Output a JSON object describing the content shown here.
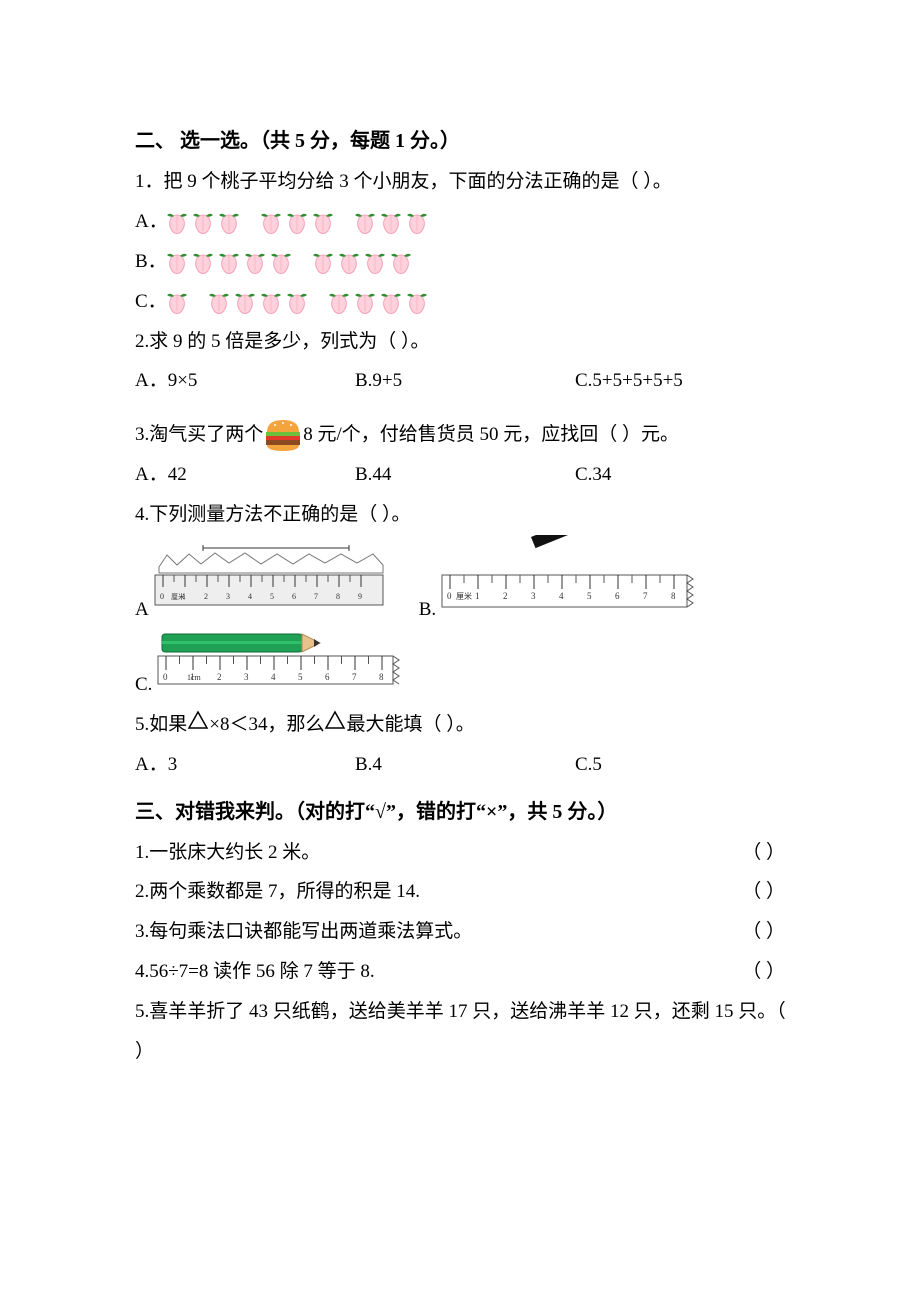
{
  "colors": {
    "text": "#000000",
    "bg": "#ffffff",
    "peach_fill": "#ffd1dc",
    "peach_stroke": "#f4a4b8",
    "peach_leaf": "#2e8b2e",
    "burger_bun": "#f4a43c",
    "burger_lettuce": "#6fbf3f",
    "burger_tomato": "#e23a2a",
    "burger_patty": "#8b4a22",
    "ruler_body": "#eeeeee",
    "ruler_stroke": "#555555",
    "pencil_body": "#1fa055",
    "pencil_tip_wood": "#e8c28a",
    "pencil_tip_lead": "#333333",
    "bar_black": "#111111",
    "bracket_stroke": "#333333"
  },
  "section2": {
    "heading": "二、  选一选。（共 5 分，每题 1 分。）",
    "q1": {
      "stem": "1．把 9 个桃子平均分给 3 个小朋友，下面的分法正确的是（    ）。",
      "optA": "A．",
      "optB": "B．",
      "optC": "C．",
      "A_groups": [
        3,
        3,
        3
      ],
      "B_groups": [
        5,
        4
      ],
      "C_groups": [
        1,
        4,
        4
      ]
    },
    "q2": {
      "stem": "2.求 9 的 5 倍是多少，列式为（    ）。",
      "A": "A．9×5",
      "B": "B.9+5",
      "C": "C.5+5+5+5+5"
    },
    "q3": {
      "pre": "3.淘气买了两个",
      "mid": "  8 元/个，付给售货员 50 元，应找回（    ）元。",
      "A": "A．42",
      "B": "B.44",
      "C": "C.34"
    },
    "q4": {
      "stem": "4.下列测量方法不正确的是（    ）。",
      "labelA": "A",
      "labelB": "B.",
      "labelC": "C.",
      "rulerA": {
        "ticks": [
          "0",
          "1",
          "2",
          "3",
          "4",
          "5",
          "6",
          "7",
          "8",
          "9"
        ],
        "unit": "厘米"
      },
      "rulerB": {
        "ticks": [
          "0",
          "1",
          "2",
          "3",
          "4",
          "5",
          "6",
          "7",
          "8"
        ],
        "unit": "厘米"
      },
      "rulerC": {
        "ticks": [
          "0",
          "1",
          "2",
          "3",
          "4",
          "5",
          "6",
          "7",
          "8"
        ],
        "unit_after_zero": "1cm"
      }
    },
    "q5": {
      "pre": "5.如果",
      "mid": "×8＜34，那么",
      "post": "最大能填（    ）。",
      "A": "A．3",
      "B": "B.4",
      "C": "C.5"
    }
  },
  "section3": {
    "heading": "三、对错我来判。（对的打“√”，错的打“×”，共 5 分。）",
    "items": [
      "1.一张床大约长 2 米。",
      "2.两个乘数都是 7，所得的积是 14.",
      "3.每句乘法口诀都能写出两道乘法算式。",
      "4.56÷7=8 读作 56 除 7 等于 8.",
      "5.喜羊羊折了 43 只纸鹤，送给美羊羊 17 只，送给沸羊羊 12 只，还剩 15 只。（    ）"
    ],
    "paren": "（    ）"
  }
}
